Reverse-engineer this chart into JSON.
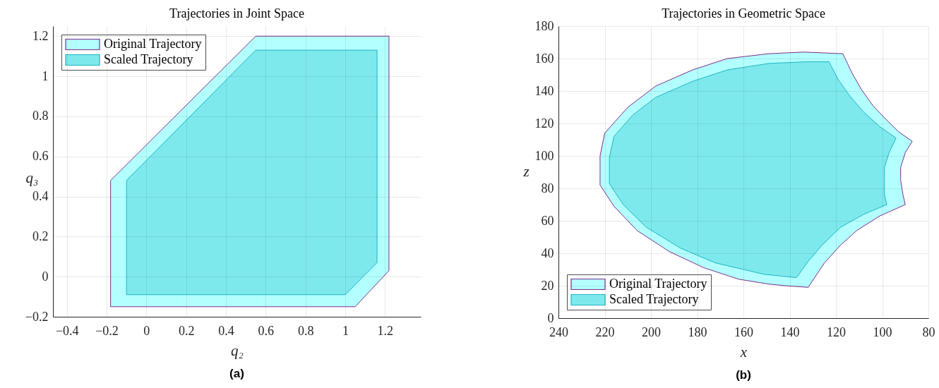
{
  "chart_data": [
    {
      "type": "area",
      "title": "Trajectories in Joint Space",
      "xlabel": "q₂",
      "ylabel": "q₃",
      "annotations": [
        "(a)"
      ],
      "series": [
        {
          "name": "Original Trajectory",
          "color": "#b3ffff",
          "x": [
            -0.18,
            0.55,
            1.22,
            1.22,
            1.05,
            -0.18
          ],
          "values": [
            0.48,
            1.2,
            1.2,
            0.03,
            -0.15,
            -0.15
          ]
        },
        {
          "name": "Scaled Trajectory",
          "color": "#7ee9ed",
          "x": [
            -0.1,
            0.55,
            1.16,
            1.16,
            1,
            -0.1
          ],
          "values": [
            0.48,
            1.13,
            1.13,
            0.07,
            -0.09,
            -0.09
          ]
        }
      ],
      "xlim": [
        -0.47,
        1.38
      ],
      "ylim": [
        -0.2,
        1.25
      ],
      "xticks": [
        -0.4,
        -0.2,
        0,
        0.2,
        0.4,
        0.6,
        0.8,
        1,
        1.2
      ],
      "yticks": [
        -0.2,
        0,
        0.2,
        0.4,
        0.6,
        0.8,
        1,
        1.2
      ],
      "grid": true,
      "legend": "top left"
    },
    {
      "type": "area",
      "title": "Trajectories in Geometric Space",
      "xlabel": "x",
      "ylabel": "z",
      "annotations": [
        "(b)"
      ],
      "series": [
        {
          "name": "Original Trajectory",
          "color": "#b3ffff",
          "x": [
            220,
            210,
            198,
            182,
            167,
            149,
            134,
            117,
            113,
            109,
            104,
            98,
            93,
            87,
            90,
            92,
            92,
            91,
            90,
            101,
            111,
            118,
            125,
            132,
            142,
            149,
            162,
            177,
            192,
            206,
            216,
            222,
            222
          ],
          "values": [
            114,
            130,
            143,
            153,
            160,
            163,
            164,
            163,
            151,
            141,
            131,
            122,
            115,
            109,
            102,
            93,
            85,
            76,
            70,
            63,
            54,
            45,
            34,
            19,
            20,
            21,
            24,
            31,
            41,
            54,
            69,
            82,
            100
          ]
        },
        {
          "name": "Scaled Trajectory",
          "color": "#7ee9ed",
          "x": [
            216,
            208,
            198,
            182,
            167,
            149,
            133,
            123,
            119,
            114,
            108,
            101,
            94,
            97,
            99,
            99,
            99,
            98,
            108,
            118,
            126,
            132,
            137,
            144,
            151,
            157,
            172,
            187,
            202,
            212,
            218,
            218
          ],
          "values": [
            112,
            125,
            136,
            146,
            153,
            157,
            158,
            158,
            147,
            137,
            127,
            118,
            111,
            102,
            93,
            85,
            76,
            70,
            64,
            56,
            45,
            35,
            25,
            26,
            27,
            29,
            34,
            43,
            56,
            70,
            83,
            99
          ]
        }
      ],
      "xlim": [
        240,
        80
      ],
      "ylim": [
        0,
        180
      ],
      "xticks": [
        240,
        220,
        200,
        180,
        160,
        140,
        120,
        100,
        80
      ],
      "yticks": [
        0,
        20,
        40,
        60,
        80,
        100,
        120,
        140,
        160,
        180
      ],
      "grid": true,
      "legend": "bottom left"
    }
  ]
}
